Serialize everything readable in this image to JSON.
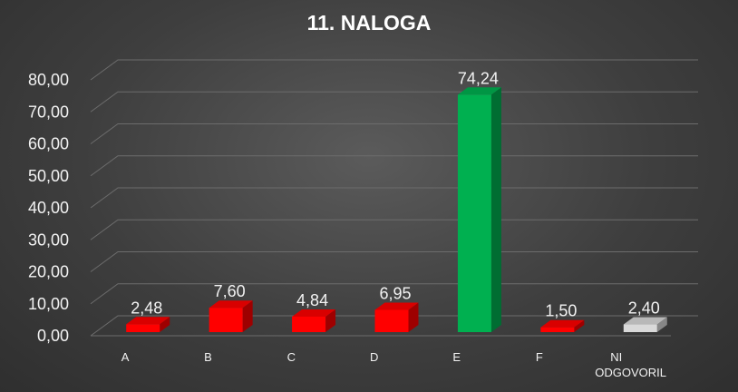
{
  "chart_data": {
    "type": "bar",
    "title": "11. NALOGA",
    "categories": [
      "A",
      "B",
      "C",
      "D",
      "E",
      "F",
      "NI ODGOVORIL"
    ],
    "values": [
      2.48,
      7.6,
      4.84,
      6.95,
      74.24,
      1.5,
      2.4
    ],
    "value_labels": [
      "2,48",
      "7,60",
      "4,84",
      "6,95",
      "74,24",
      "1,50",
      "2,40"
    ],
    "yticks": [
      "0,00",
      "10,00",
      "20,00",
      "30,00",
      "40,00",
      "50,00",
      "60,00",
      "70,00",
      "80,00"
    ],
    "ylim": [
      0,
      80
    ],
    "grid": true,
    "legend": "none",
    "bar_colors": [
      "#ff0000",
      "#ff0000",
      "#ff0000",
      "#ff0000",
      "#00b050",
      "#ff0000",
      "#d9d9d9"
    ],
    "background": "#3f3f3f"
  }
}
